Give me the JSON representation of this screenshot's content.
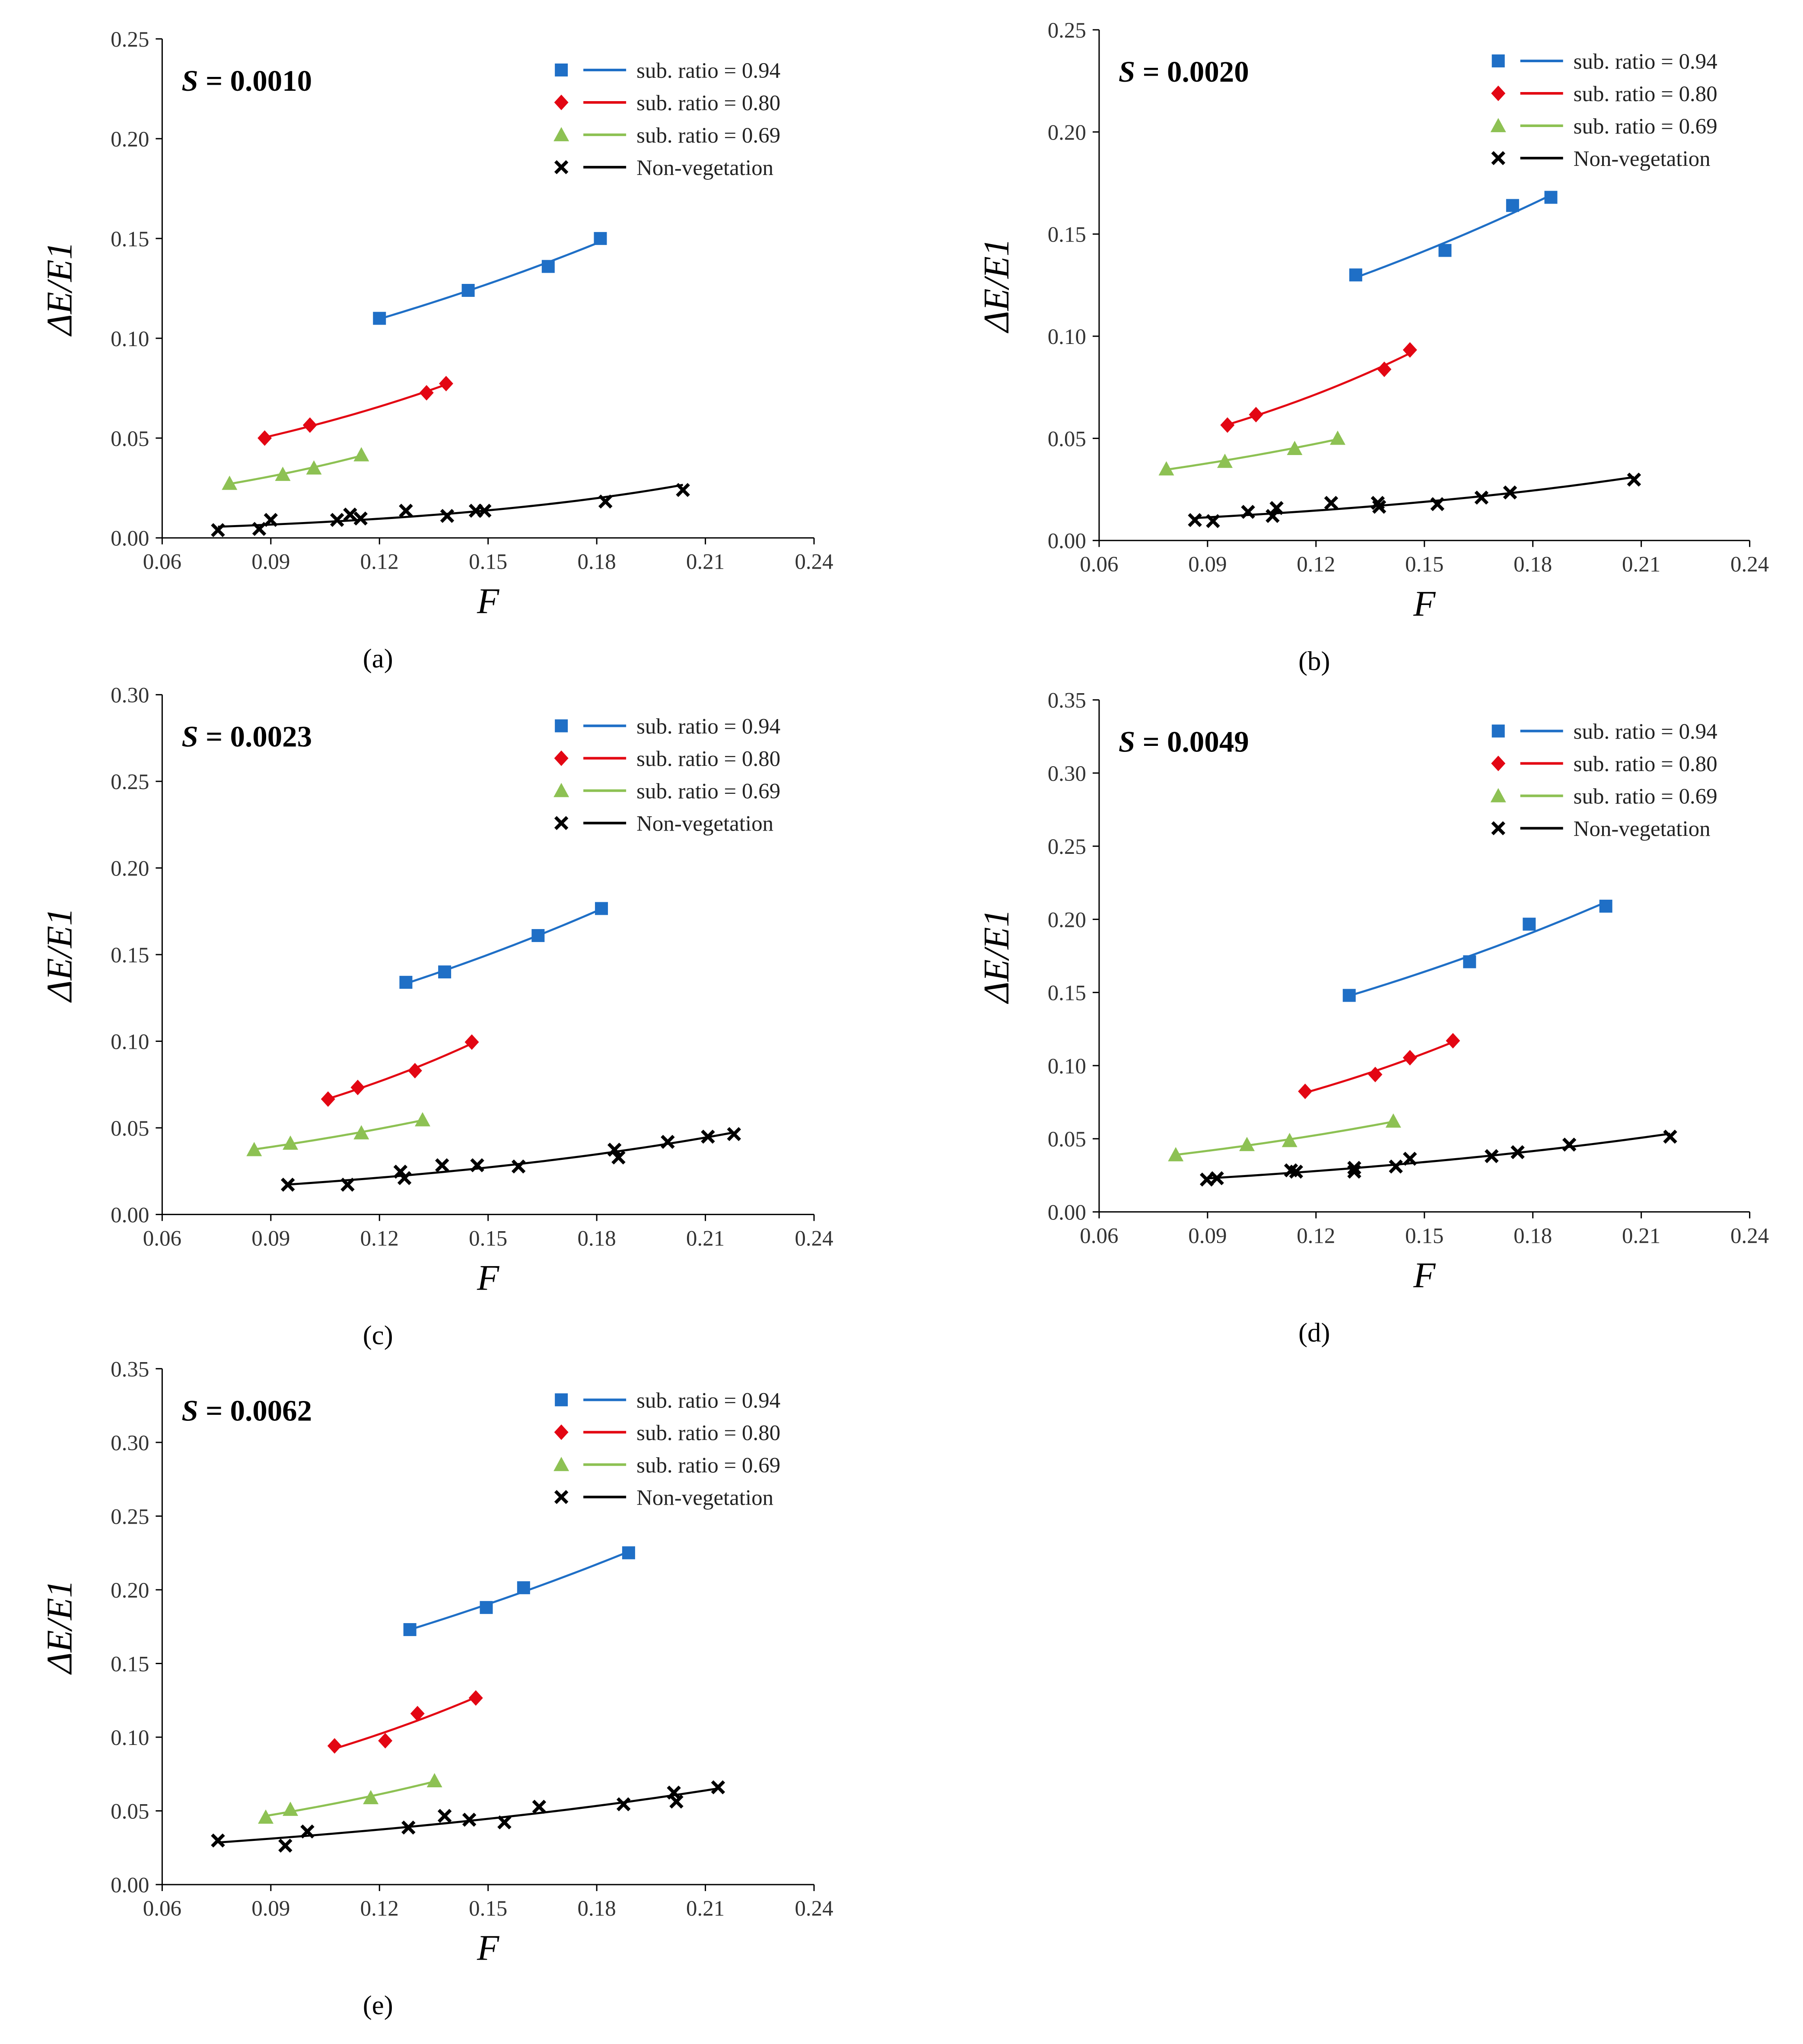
{
  "colors": {
    "s094": "#1f6fc6",
    "s080": "#e30613",
    "s069": "#8dc153",
    "nonveg": "#000000"
  },
  "legend": [
    "sub. ratio = 0.94",
    "sub. ratio = 0.80",
    "sub. ratio = 0.69",
    "Non-vegetation"
  ],
  "chart_data": [
    {
      "type": "scatter",
      "panel": "(a)",
      "title_var": "S",
      "title_value": " = 0.0010",
      "xlabel": "F",
      "ylabel": "ΔE/E1",
      "xlim": [
        0.06,
        0.24
      ],
      "ylim": [
        0,
        0.25
      ],
      "xticks": [
        "0.06",
        "0.09",
        "0.12",
        "0.15",
        "0.18",
        "0.21",
        "0.24"
      ],
      "yticks": [
        "0.00",
        "0.05",
        "0.10",
        "0.15",
        "0.20",
        "0.25"
      ],
      "legend_position": "top-right",
      "series": [
        {
          "name": "sub. ratio = 0.94",
          "x": [
            0.12,
            0.1445,
            0.1666,
            0.181
          ],
          "y": [
            0.11,
            0.124,
            0.136,
            0.15
          ]
        },
        {
          "name": "sub. ratio = 0.80",
          "x": [
            0.0883,
            0.1008,
            0.133,
            0.1384
          ],
          "y": [
            0.05,
            0.0565,
            0.0727,
            0.0773
          ]
        },
        {
          "name": "sub. ratio = 0.69",
          "x": [
            0.0786,
            0.0933,
            0.1019,
            0.115
          ],
          "y": [
            0.0273,
            0.0318,
            0.035,
            0.0416
          ]
        },
        {
          "name": "Non-vegetation",
          "x": [
            0.0754,
            0.0868,
            0.09,
            0.1083,
            0.1119,
            0.1148,
            0.1273,
            0.1387,
            0.1466,
            0.149,
            0.1824,
            0.2038
          ],
          "y": [
            0.0039,
            0.0045,
            0.009,
            0.009,
            0.0117,
            0.0097,
            0.0136,
            0.011,
            0.0136,
            0.0136,
            0.0182,
            0.024
          ]
        }
      ]
    },
    {
      "type": "scatter",
      "panel": "(b)",
      "title_var": "S",
      "title_value": " = 0.0020",
      "xlabel": "F",
      "ylabel": "ΔE/E1",
      "xlim": [
        0.06,
        0.24
      ],
      "ylim": [
        0,
        0.25
      ],
      "xticks": [
        "0.06",
        "0.09",
        "0.12",
        "0.15",
        "0.18",
        "0.21",
        "0.24"
      ],
      "yticks": [
        "0.00",
        "0.05",
        "0.10",
        "0.15",
        "0.20",
        "0.25"
      ],
      "legend_position": "top-right",
      "series": [
        {
          "name": "sub. ratio = 0.94",
          "x": [
            0.131,
            0.1557,
            0.1744,
            0.185
          ],
          "y": [
            0.13,
            0.142,
            0.164,
            0.168
          ]
        },
        {
          "name": "sub. ratio = 0.80",
          "x": [
            0.0955,
            0.1034,
            0.1389,
            0.146
          ],
          "y": [
            0.0565,
            0.0616,
            0.0838,
            0.0933
          ]
        },
        {
          "name": "sub. ratio = 0.69",
          "x": [
            0.0786,
            0.0948,
            0.1141,
            0.126
          ],
          "y": [
            0.035,
            0.0387,
            0.045,
            0.05
          ]
        },
        {
          "name": "Non-vegetation",
          "x": [
            0.0865,
            0.0915,
            0.1012,
            0.108,
            0.1091,
            0.1242,
            0.1371,
            0.1375,
            0.1536,
            0.1658,
            0.1737,
            0.208
          ],
          "y": [
            0.01,
            0.0095,
            0.014,
            0.012,
            0.0159,
            0.0184,
            0.0184,
            0.0165,
            0.0178,
            0.021,
            0.0235,
            0.0298
          ]
        }
      ]
    },
    {
      "type": "scatter",
      "panel": "(c)",
      "title_var": "S",
      "title_value": " = 0.0023",
      "xlabel": "F",
      "ylabel": "ΔE/E1",
      "xlim": [
        0.06,
        0.24
      ],
      "ylim": [
        0,
        0.3
      ],
      "xticks": [
        "0.06",
        "0.09",
        "0.12",
        "0.15",
        "0.18",
        "0.21",
        "0.24"
      ],
      "yticks": [
        "0.00",
        "0.05",
        "0.10",
        "0.15",
        "0.20",
        "0.25",
        "0.30"
      ],
      "legend_position": "top-right",
      "series": [
        {
          "name": "sub. ratio = 0.94",
          "x": [
            0.1273,
            0.138,
            0.1638,
            0.1813
          ],
          "y": [
            0.134,
            0.14,
            0.161,
            0.1766
          ]
        },
        {
          "name": "sub. ratio = 0.80",
          "x": [
            0.1058,
            0.114,
            0.1298,
            0.1455
          ],
          "y": [
            0.0666,
            0.0733,
            0.083,
            0.0995
          ]
        },
        {
          "name": "sub. ratio = 0.69",
          "x": [
            0.0854,
            0.0954,
            0.115,
            0.1319
          ],
          "y": [
            0.0374,
            0.0411,
            0.0471,
            0.0546
          ]
        },
        {
          "name": "Non-vegetation",
          "x": [
            0.0947,
            0.1112,
            0.1258,
            0.1269,
            0.1373,
            0.147,
            0.1584,
            0.1849,
            0.186,
            0.1996,
            0.2107,
            0.2179
          ],
          "y": [
            0.0172,
            0.0172,
            0.0247,
            0.021,
            0.0284,
            0.0284,
            0.0277,
            0.0374,
            0.0329,
            0.0419,
            0.0449,
            0.0464
          ]
        }
      ]
    },
    {
      "type": "scatter",
      "panel": "(d)",
      "title_var": "S",
      "title_value": " = 0.0049",
      "xlabel": "F",
      "ylabel": "ΔE/E1",
      "xlim": [
        0.06,
        0.24
      ],
      "ylim": [
        0,
        0.35
      ],
      "xticks": [
        "0.06",
        "0.09",
        "0.12",
        "0.15",
        "0.18",
        "0.21",
        "0.24"
      ],
      "yticks": [
        "0.00",
        "0.05",
        "0.10",
        "0.15",
        "0.20",
        "0.25",
        "0.30",
        "0.35"
      ],
      "legend_position": "top-right",
      "series": [
        {
          "name": "sub. ratio = 0.94",
          "x": [
            0.1292,
            0.1625,
            0.179,
            0.2002
          ],
          "y": [
            0.148,
            0.171,
            0.1967,
            0.209
          ]
        },
        {
          "name": "sub. ratio = 0.80",
          "x": [
            0.117,
            0.1364,
            0.146,
            0.1579
          ],
          "y": [
            0.0824,
            0.0939,
            0.1054,
            0.117
          ]
        },
        {
          "name": "sub. ratio = 0.69",
          "x": [
            0.0812,
            0.1009,
            0.1127,
            0.1414
          ],
          "y": [
            0.039,
            0.046,
            0.0487,
            0.062
          ]
        },
        {
          "name": "Non-vegetation",
          "x": [
            0.0898,
            0.0926,
            0.1131,
            0.1145,
            0.1306,
            0.1306,
            0.1421,
            0.146,
            0.1686,
            0.1758,
            0.1901,
            0.218
          ],
          "y": [
            0.0221,
            0.023,
            0.0284,
            0.0275,
            0.0301,
            0.0275,
            0.031,
            0.0363,
            0.0381,
            0.0408,
            0.046,
            0.0514
          ]
        }
      ]
    },
    {
      "type": "scatter",
      "panel": "(e)",
      "title_var": "S",
      "title_value": " = 0.0062",
      "xlabel": "F",
      "ylabel": "ΔE/E1",
      "xlim": [
        0.06,
        0.24
      ],
      "ylim": [
        0,
        0.35
      ],
      "xticks": [
        "0.06",
        "0.09",
        "0.12",
        "0.15",
        "0.18",
        "0.21",
        "0.24"
      ],
      "yticks": [
        "0.00",
        "0.05",
        "0.10",
        "0.15",
        "0.20",
        "0.25",
        "0.30",
        "0.35"
      ],
      "legend_position": "top-right",
      "series": [
        {
          "name": "sub. ratio = 0.94",
          "x": [
            0.1284,
            0.1495,
            0.1598,
            0.1888
          ],
          "y": [
            0.173,
            0.188,
            0.2014,
            0.2251
          ]
        },
        {
          "name": "sub. ratio = 0.80",
          "x": [
            0.1076,
            0.1216,
            0.1305,
            0.1466
          ],
          "y": [
            0.0941,
            0.0976,
            0.116,
            0.1266
          ]
        },
        {
          "name": "sub. ratio = 0.69",
          "x": [
            0.0886,
            0.0954,
            0.1176,
            0.1352
          ],
          "y": [
            0.0457,
            0.051,
            0.0589,
            0.0704
          ]
        },
        {
          "name": "Non-vegetation",
          "x": [
            0.0754,
            0.094,
            0.1001,
            0.128,
            0.138,
            0.1448,
            0.1545,
            0.1641,
            0.1874,
            0.2013,
            0.202,
            0.2135
          ],
          "y": [
            0.0299,
            0.0264,
            0.036,
            0.0387,
            0.0466,
            0.044,
            0.0422,
            0.0528,
            0.0545,
            0.0624,
            0.0563,
            0.066
          ]
        }
      ]
    }
  ]
}
